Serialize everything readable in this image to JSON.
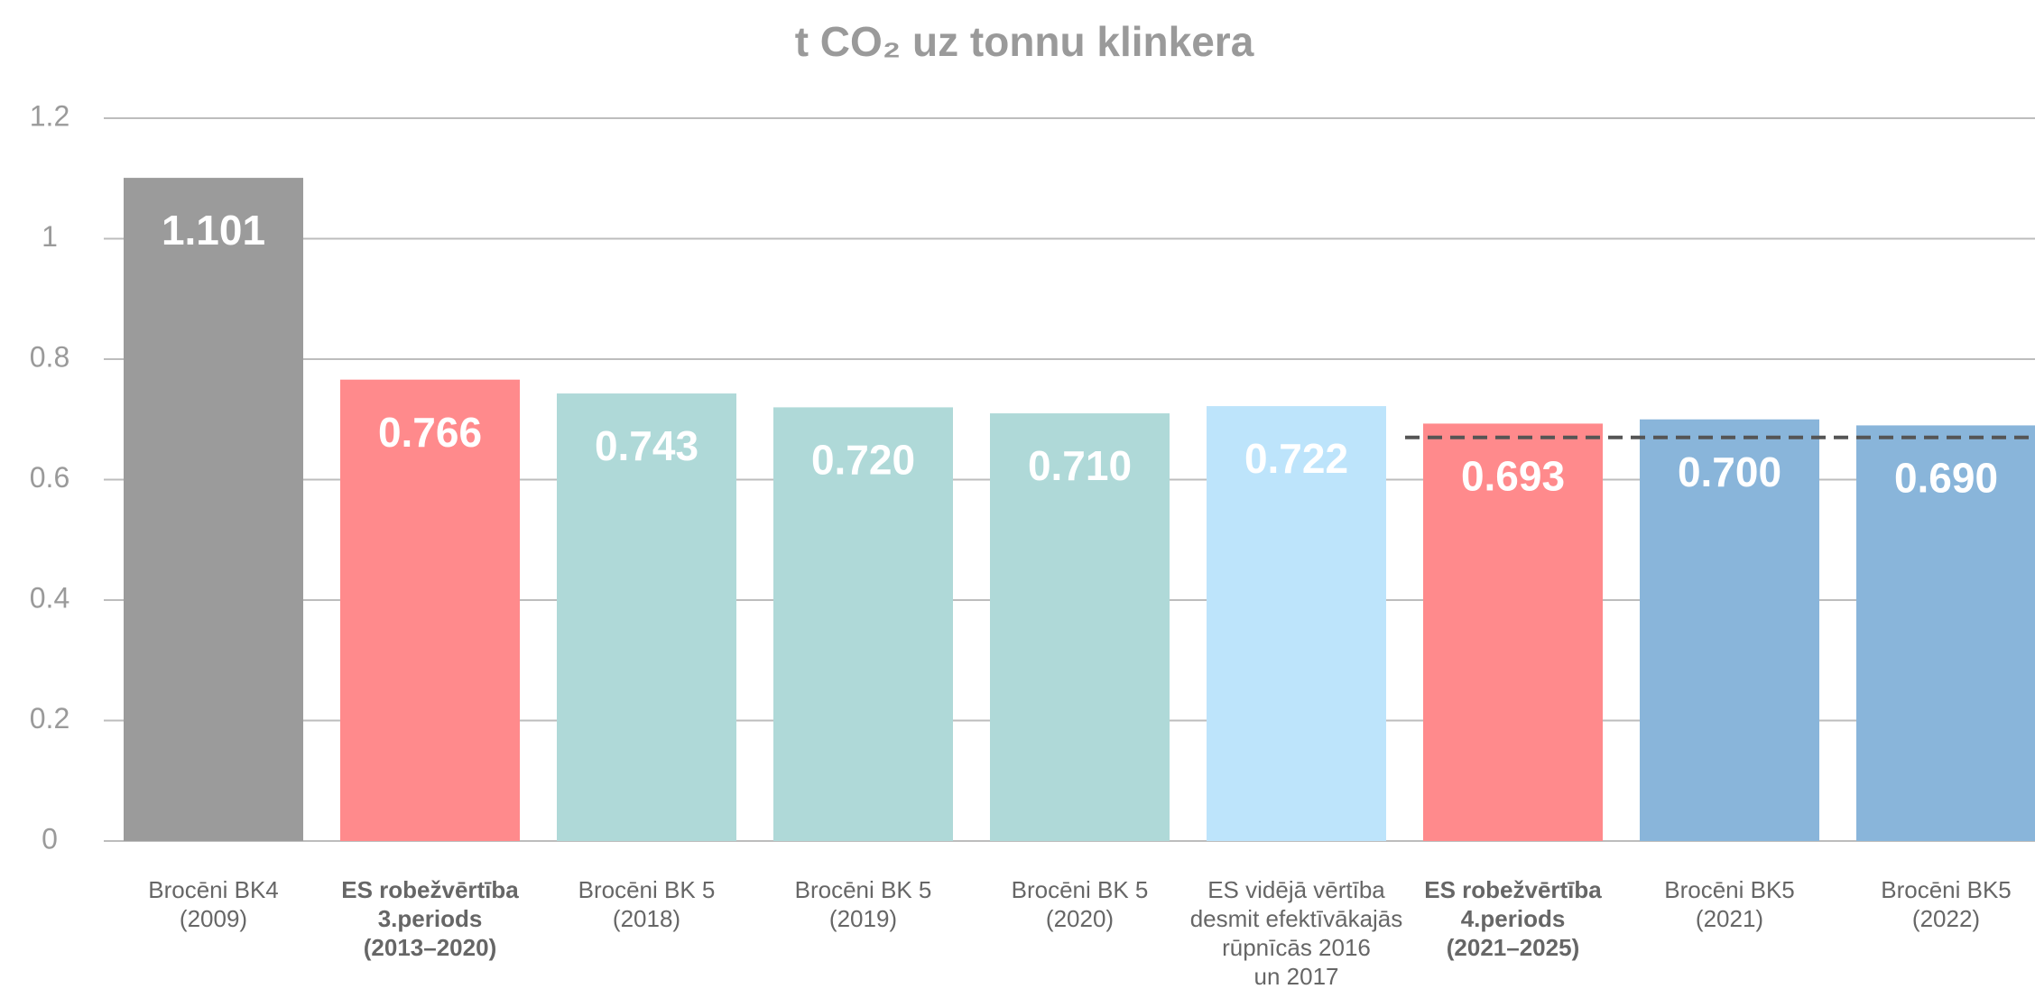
{
  "chart_data": {
    "type": "bar",
    "title": "t CO₂ uz tonnu klinkera",
    "categories": [
      "Brocēni BK4\n(2009)",
      "ES robežvērtība\n3.periods\n(2013–2020)",
      "Brocēni BK 5\n(2018)",
      "Brocēni BK 5\n(2019)",
      "Brocēni BK 5\n(2020)",
      "ES vidējā vērtība\ndesmit efektīvākajās\nrūpnīcās 2016\nun 2017",
      "ES robežvērtība\n4.periods\n(2021–2025)",
      "Brocēni BK5\n(2021)",
      "Brocēni BK5\n(2022)"
    ],
    "label_bold": [
      false,
      true,
      false,
      false,
      false,
      false,
      true,
      false,
      false
    ],
    "values": [
      1.101,
      0.766,
      0.743,
      0.72,
      0.71,
      0.722,
      0.693,
      0.7,
      0.69
    ],
    "value_labels": [
      "1.101",
      "0.766",
      "0.743",
      "0.720",
      "0.710",
      "0.722",
      "0.693",
      "0.700",
      "0.690"
    ],
    "colors": [
      "#9b9b9b",
      "#ff8a8c",
      "#afd9d8",
      "#afd9d8",
      "#afd9d8",
      "#bde4fb",
      "#ff8a8c",
      "#89b5da",
      "#89b5da"
    ],
    "reference_line": 0.67,
    "ylim": [
      0,
      1.2
    ],
    "yticks": [
      0,
      0.2,
      0.4,
      0.6,
      0.8,
      1,
      1.2
    ],
    "grid": true
  }
}
